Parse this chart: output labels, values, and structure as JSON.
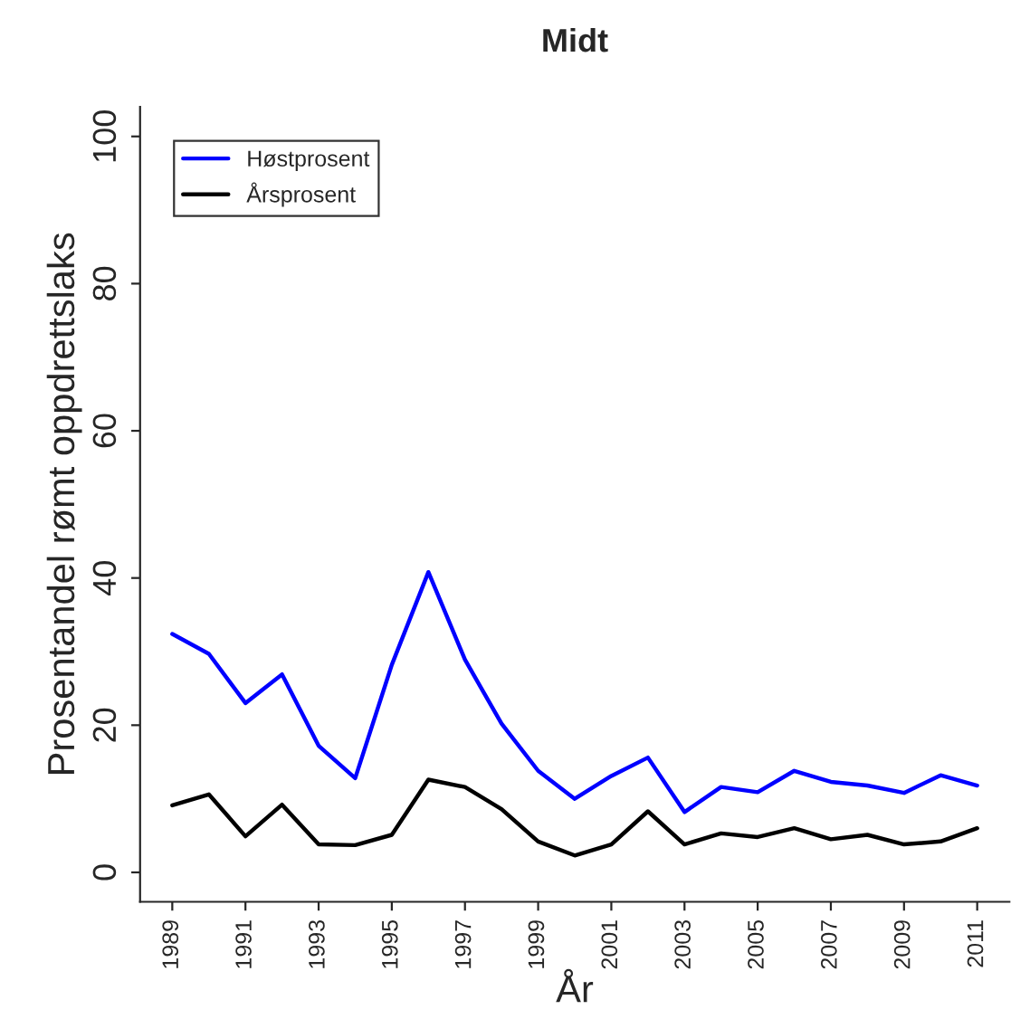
{
  "chart_data": {
    "type": "line",
    "title": "Midt",
    "xlabel": "År",
    "ylabel": "Prosentandel rømt oppdrettslaks",
    "x": [
      1989,
      1990,
      1991,
      1992,
      1993,
      1994,
      1995,
      1996,
      1997,
      1998,
      1999,
      2000,
      2001,
      2002,
      2003,
      2004,
      2005,
      2006,
      2007,
      2008,
      2009,
      2010,
      2011
    ],
    "series": [
      {
        "name": "Høstprosent",
        "color": "#0000ff",
        "values": [
          32.4,
          29.7,
          23.0,
          26.9,
          17.2,
          12.8,
          28.2,
          40.8,
          28.9,
          20.2,
          13.8,
          10.0,
          13.1,
          15.6,
          8.2,
          11.6,
          10.9,
          13.8,
          12.3,
          11.8,
          10.8,
          13.2,
          11.8
        ]
      },
      {
        "name": "Årsprosent",
        "color": "#000000",
        "values": [
          9.1,
          10.6,
          4.9,
          9.2,
          3.8,
          3.7,
          5.1,
          12.6,
          11.6,
          8.6,
          4.2,
          2.3,
          3.8,
          8.3,
          3.8,
          5.3,
          4.8,
          6.0,
          4.5,
          5.1,
          3.8,
          4.2,
          6.0
        ]
      }
    ],
    "xlim": [
      1988.12,
      2011.88
    ],
    "ylim": [
      -4,
      104
    ],
    "xticks": [
      1989,
      1991,
      1993,
      1995,
      1997,
      1999,
      2001,
      2003,
      2005,
      2007,
      2009,
      2011
    ],
    "yticks": [
      0,
      20,
      40,
      60,
      80,
      100
    ],
    "legend": "top left",
    "grid": false,
    "marker": "none",
    "line_style": "solid"
  }
}
